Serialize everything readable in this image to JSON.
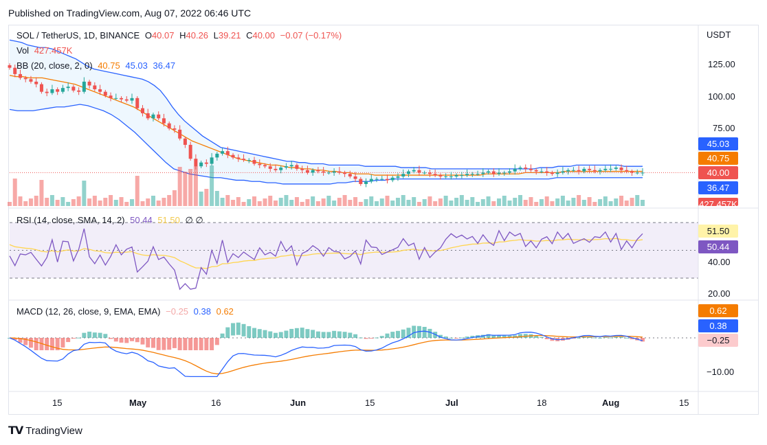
{
  "published": "Published on TradingView.com, Aug 07, 2022 06:46 UTC",
  "legend": {
    "symbol": "SOL / TetherUS, 1D, BINANCE",
    "open_label": "O",
    "open": "40.07",
    "high_label": "H",
    "high": "40.26",
    "low_label": "L",
    "low": "39.21",
    "close_label": "C",
    "close": "40.00",
    "change": "−0.07 (−0.17%)",
    "vol_label": "Vol",
    "vol": "427.457K",
    "bb_label": "BB (20, close, 2, 0)",
    "bb_mid": "40.75",
    "bb_up": "45.03",
    "bb_low": "36.47"
  },
  "rsi_legend": {
    "label": "RSI (14, close, SMA, 14, 2)",
    "rsi": "50.44",
    "sma": "51.50",
    "extra": "∅ ∅"
  },
  "macd_legend": {
    "label": "MACD (12, 26, close, 9, EMA, EMA)",
    "hist": "−0.25",
    "macd": "0.38",
    "signal": "0.62"
  },
  "axis": {
    "currency": "USDT",
    "price_ticks": [
      "125.00",
      "100.00",
      "75.00"
    ],
    "rsi_ticks": [
      "40.00",
      "20.00"
    ],
    "macd_ticks": [
      "−10.00"
    ],
    "x_ticks": [
      "15",
      "May",
      "16",
      "Jun",
      "15",
      "Jul",
      "18",
      "Aug",
      "15"
    ]
  },
  "tags": {
    "bb_up": "45.03",
    "bb_mid": "40.75",
    "price": "40.00",
    "bb_low": "36.47",
    "volume": "427.457K",
    "rsi_sma": "51.50",
    "rsi": "50.44",
    "macd_signal": "0.62",
    "macd": "0.38",
    "macd_hist": "−0.25"
  },
  "colors": {
    "up": "#26a69a",
    "down": "#ef5350",
    "bb_basis": "#f57c00",
    "bb_band": "#2962ff",
    "rsi": "#7e57c2",
    "rsi_ma": "#ffd54f",
    "macd": "#2962ff",
    "signal": "#f57c00"
  },
  "footer": {
    "brand": "TradingView"
  },
  "chart_data": {
    "type": "candlestick",
    "title": "SOL / TetherUS, 1D, BINANCE",
    "dates_range": [
      "2022-04-05",
      "2022-08-07"
    ],
    "x_ticks": [
      "15",
      "May",
      "16",
      "Jun",
      "15",
      "Jul",
      "18",
      "Aug",
      "15"
    ],
    "price_ylim": [
      30,
      140
    ],
    "close": [
      123,
      118,
      115,
      114,
      112,
      110,
      104,
      103,
      106,
      104,
      107,
      108,
      105,
      104,
      112,
      109,
      106,
      104,
      101,
      99,
      99,
      98,
      97,
      99,
      91,
      87,
      83,
      86,
      83,
      79,
      75,
      74,
      67,
      62,
      51,
      45,
      48,
      47,
      52,
      55,
      57,
      54,
      52,
      51,
      50,
      50,
      47,
      46,
      45,
      43,
      42,
      44,
      45,
      46,
      43,
      42,
      40,
      42,
      41,
      40,
      40,
      41,
      40,
      39,
      37,
      35,
      31,
      33,
      35,
      35,
      35,
      34,
      36,
      37,
      39,
      41,
      42,
      40,
      40,
      39,
      38,
      37,
      37,
      37,
      38,
      38,
      39,
      39,
      39,
      40,
      41,
      39,
      40,
      40,
      41,
      43,
      44,
      43,
      42,
      41,
      41,
      40,
      39,
      40,
      41,
      42,
      42,
      41,
      43,
      42,
      41,
      42,
      43,
      43,
      44,
      42,
      41,
      40,
      40,
      40
    ],
    "bb_upper": [
      145,
      144,
      143,
      141,
      140,
      139,
      139,
      138,
      136,
      134,
      132,
      130,
      127,
      124,
      122,
      121,
      120,
      119,
      118,
      117,
      116,
      115,
      114,
      112,
      109,
      105,
      99,
      92,
      86,
      81,
      77,
      73,
      69,
      66,
      63,
      60,
      59,
      58,
      57,
      56,
      55,
      54,
      53,
      52,
      51,
      50,
      49,
      49,
      48,
      48,
      47,
      47,
      47,
      46,
      46,
      46,
      46,
      46,
      46,
      45,
      45,
      45,
      45,
      45,
      45,
      44,
      44,
      44,
      44,
      44,
      43,
      43,
      43,
      43,
      43,
      43,
      43,
      43,
      43,
      43,
      43,
      43,
      43,
      43,
      43,
      43,
      43,
      43,
      44,
      44,
      44,
      45,
      45,
      45,
      46,
      46,
      46,
      46,
      46,
      46,
      46,
      46,
      45,
      45,
      45,
      45
    ],
    "bb_basis": [
      117,
      116,
      116,
      115,
      115,
      115,
      114,
      113,
      112,
      111,
      110,
      108,
      106,
      104,
      102,
      100,
      98,
      96,
      94,
      92,
      89,
      86,
      83,
      80,
      77,
      74,
      71,
      68,
      65,
      63,
      61,
      59,
      57,
      55,
      53,
      51,
      50,
      49,
      48,
      47,
      46,
      46,
      45,
      44,
      44,
      43,
      43,
      42,
      42,
      41,
      41,
      40,
      40,
      39,
      39,
      39,
      38,
      38,
      38,
      38,
      38,
      38,
      38,
      38,
      38,
      38,
      38,
      38,
      38,
      38,
      38,
      38,
      38,
      39,
      39,
      39,
      39,
      39,
      39,
      40,
      40,
      40,
      40,
      40,
      40,
      41,
      41,
      41,
      41,
      41,
      41,
      41,
      41,
      41,
      41,
      41,
      41,
      41
    ],
    "bb_lower": [
      90,
      89,
      89,
      89,
      90,
      91,
      92,
      92,
      93,
      94,
      93,
      91,
      89,
      86,
      82,
      77,
      72,
      66,
      60,
      54,
      48,
      43,
      41,
      39,
      38,
      37,
      36,
      36,
      35,
      34,
      34,
      33,
      33,
      32,
      32,
      31,
      31,
      31,
      31,
      31,
      31,
      31,
      32,
      32,
      33,
      33,
      33,
      34,
      34,
      35,
      35,
      35,
      35,
      35,
      35,
      35,
      35,
      35,
      35,
      35,
      35,
      35,
      35,
      35,
      35,
      35,
      35,
      35,
      35,
      35,
      36,
      36,
      36,
      36,
      36,
      36,
      36,
      36,
      36,
      36,
      36,
      36
    ],
    "volume_unit": "K",
    "rsi_ylim": [
      15,
      75
    ],
    "rsi_bands": [
      30,
      70
    ],
    "macd_ylim": [
      -15,
      3
    ]
  }
}
